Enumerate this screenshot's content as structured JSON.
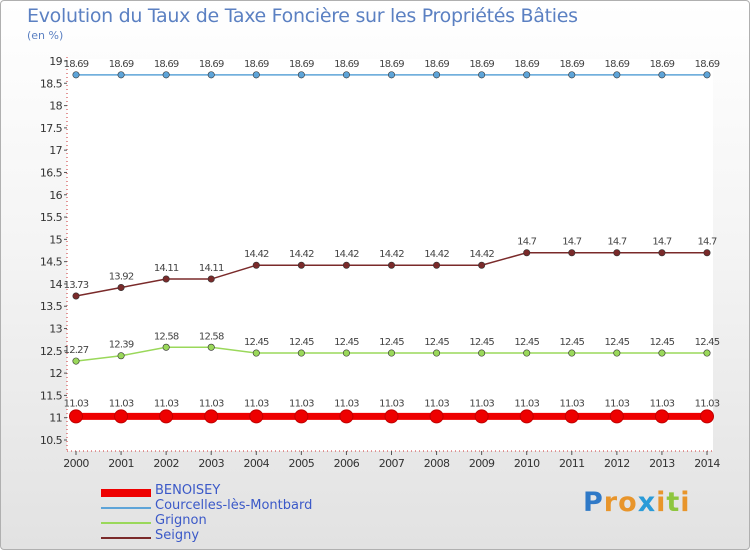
{
  "header": {
    "title": "Evolution du Taux de Taxe Foncière sur les Propriétés Bâties",
    "unit": "(en %)"
  },
  "chart_data": {
    "type": "line",
    "x": [
      "2000",
      "2001",
      "2002",
      "2003",
      "2004",
      "2005",
      "2006",
      "2007",
      "2008",
      "2009",
      "2010",
      "2011",
      "2012",
      "2013",
      "2014"
    ],
    "ylim": [
      10.5,
      19
    ],
    "yticks": [
      "10.5",
      "11",
      "11.5",
      "12",
      "12.5",
      "13",
      "13.5",
      "14",
      "14.5",
      "15",
      "15.5",
      "16",
      "16.5",
      "17",
      "17.5",
      "18",
      "18.5",
      "19"
    ],
    "series": [
      {
        "name": "BENOISEY",
        "color": "#ee0000",
        "values": [
          11.03,
          11.03,
          11.03,
          11.03,
          11.03,
          11.03,
          11.03,
          11.03,
          11.03,
          11.03,
          11.03,
          11.03,
          11.03,
          11.03,
          11.03
        ],
        "labels": [
          "11.03",
          "11.03",
          "11.03",
          "11.03",
          "11.03",
          "11.03",
          "11.03",
          "11.03",
          "11.03",
          "11.03",
          "11.03",
          "11.03",
          "11.03",
          "11.03",
          "11.03"
        ]
      },
      {
        "name": "Courcelles-lès-Montbard",
        "color": "#5ea4d8",
        "values": [
          18.69,
          18.69,
          18.69,
          18.69,
          18.69,
          18.69,
          18.69,
          18.69,
          18.69,
          18.69,
          18.69,
          18.69,
          18.69,
          18.69,
          18.69
        ],
        "labels": [
          "18.69",
          "18.69",
          "18.69",
          "18.69",
          "18.69",
          "18.69",
          "18.69",
          "18.69",
          "18.69",
          "18.69",
          "18.69",
          "18.69",
          "18.69",
          "18.69",
          "18.69"
        ]
      },
      {
        "name": "Grignon",
        "color": "#9ad85a",
        "values": [
          12.27,
          12.39,
          12.58,
          12.58,
          12.45,
          12.45,
          12.45,
          12.45,
          12.45,
          12.45,
          12.45,
          12.45,
          12.45,
          12.45,
          12.45
        ],
        "labels": [
          "12.27",
          "12.39",
          "12.58",
          "12.58",
          "12.45",
          "12.45",
          "12.45",
          "12.45",
          "12.45",
          "12.45",
          "12.45",
          "12.45",
          "12.45",
          "12.45",
          "12.45"
        ]
      },
      {
        "name": "Seigny",
        "color": "#7a2a2a",
        "values": [
          13.73,
          13.92,
          14.11,
          14.11,
          14.42,
          14.42,
          14.42,
          14.42,
          14.42,
          14.42,
          14.7,
          14.7,
          14.7,
          14.7,
          14.7
        ],
        "labels": [
          "13.73",
          "13.92",
          "14.11",
          "14.11",
          "14.42",
          "14.42",
          "14.42",
          "14.42",
          "14.42",
          "14.42",
          "14.7",
          "14.7",
          "14.7",
          "14.7",
          "14.7"
        ]
      }
    ]
  },
  "brand": {
    "letters": [
      "P",
      "r",
      "o",
      "x",
      "i",
      "t",
      "i"
    ],
    "colors": [
      "#2f79c7",
      "#e8952b",
      "#e8952b",
      "#2a9bd8",
      "#e8952b",
      "#8ec63f",
      "#e8952b"
    ]
  }
}
